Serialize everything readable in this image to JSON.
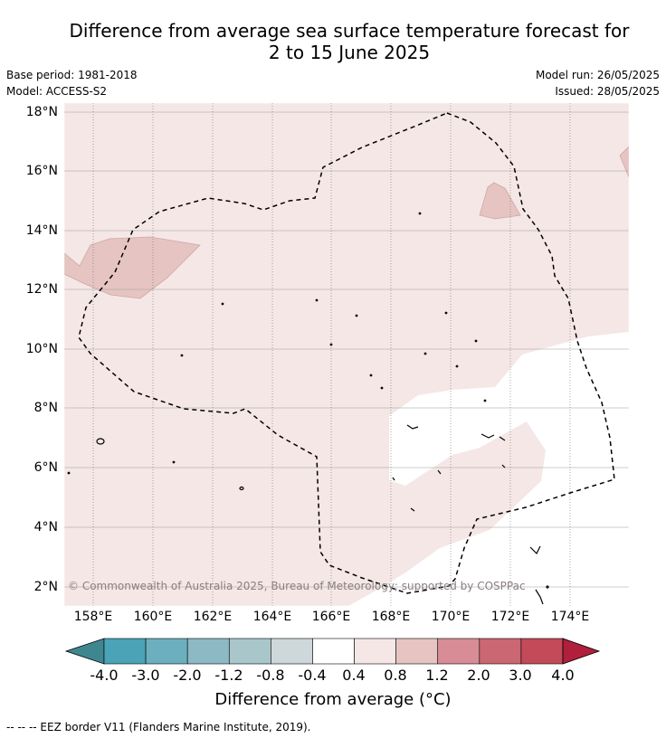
{
  "title_line1": "Difference from average sea surface temperature forecast for",
  "title_line2": "2 to 15 June 2025",
  "meta_left": {
    "base_period": "Base period: 1981-2018",
    "model": "Model: ACCESS-S2"
  },
  "meta_right": {
    "model_run": "Model run: 26/05/2025",
    "issued": "Issued: 28/05/2025"
  },
  "lat_labels": [
    "18°N",
    "16°N",
    "14°N",
    "12°N",
    "10°N",
    "8°N",
    "6°N",
    "4°N",
    "2°N"
  ],
  "lon_labels": [
    "158°E",
    "160°E",
    "162°E",
    "164°E",
    "166°E",
    "168°E",
    "170°E",
    "172°E",
    "174°E"
  ],
  "copyright": "© Commonwealth of Australia 2025, Bureau of Meteorology; supported by COSPPac",
  "colorbar": {
    "ticks": [
      "-4.0",
      "-3.0",
      "-2.0",
      "-1.2",
      "-0.8",
      "-0.4",
      "0.4",
      "0.8",
      "1.2",
      "2.0",
      "3.0",
      "4.0"
    ],
    "colors": [
      "#4aa3b6",
      "#6cb0bf",
      "#8db9c4",
      "#a9c6ca",
      "#ced8da",
      "#ffffff",
      "#f5e7e6",
      "#e6c4c1",
      "#d88c95",
      "#ca6772",
      "#c34a59"
    ],
    "extend_low_color": "#3f8790",
    "extend_high_color": "#b01f3b",
    "label": "Difference from average (°C)"
  },
  "legend_eez": "--  --  -- EEZ border V11 (Flanders Marine Institute, 2019).",
  "map_colors": {
    "light_positive": "#f5e7e6",
    "medium_positive": "#e6c4c1",
    "neutral": "#ffffff"
  }
}
